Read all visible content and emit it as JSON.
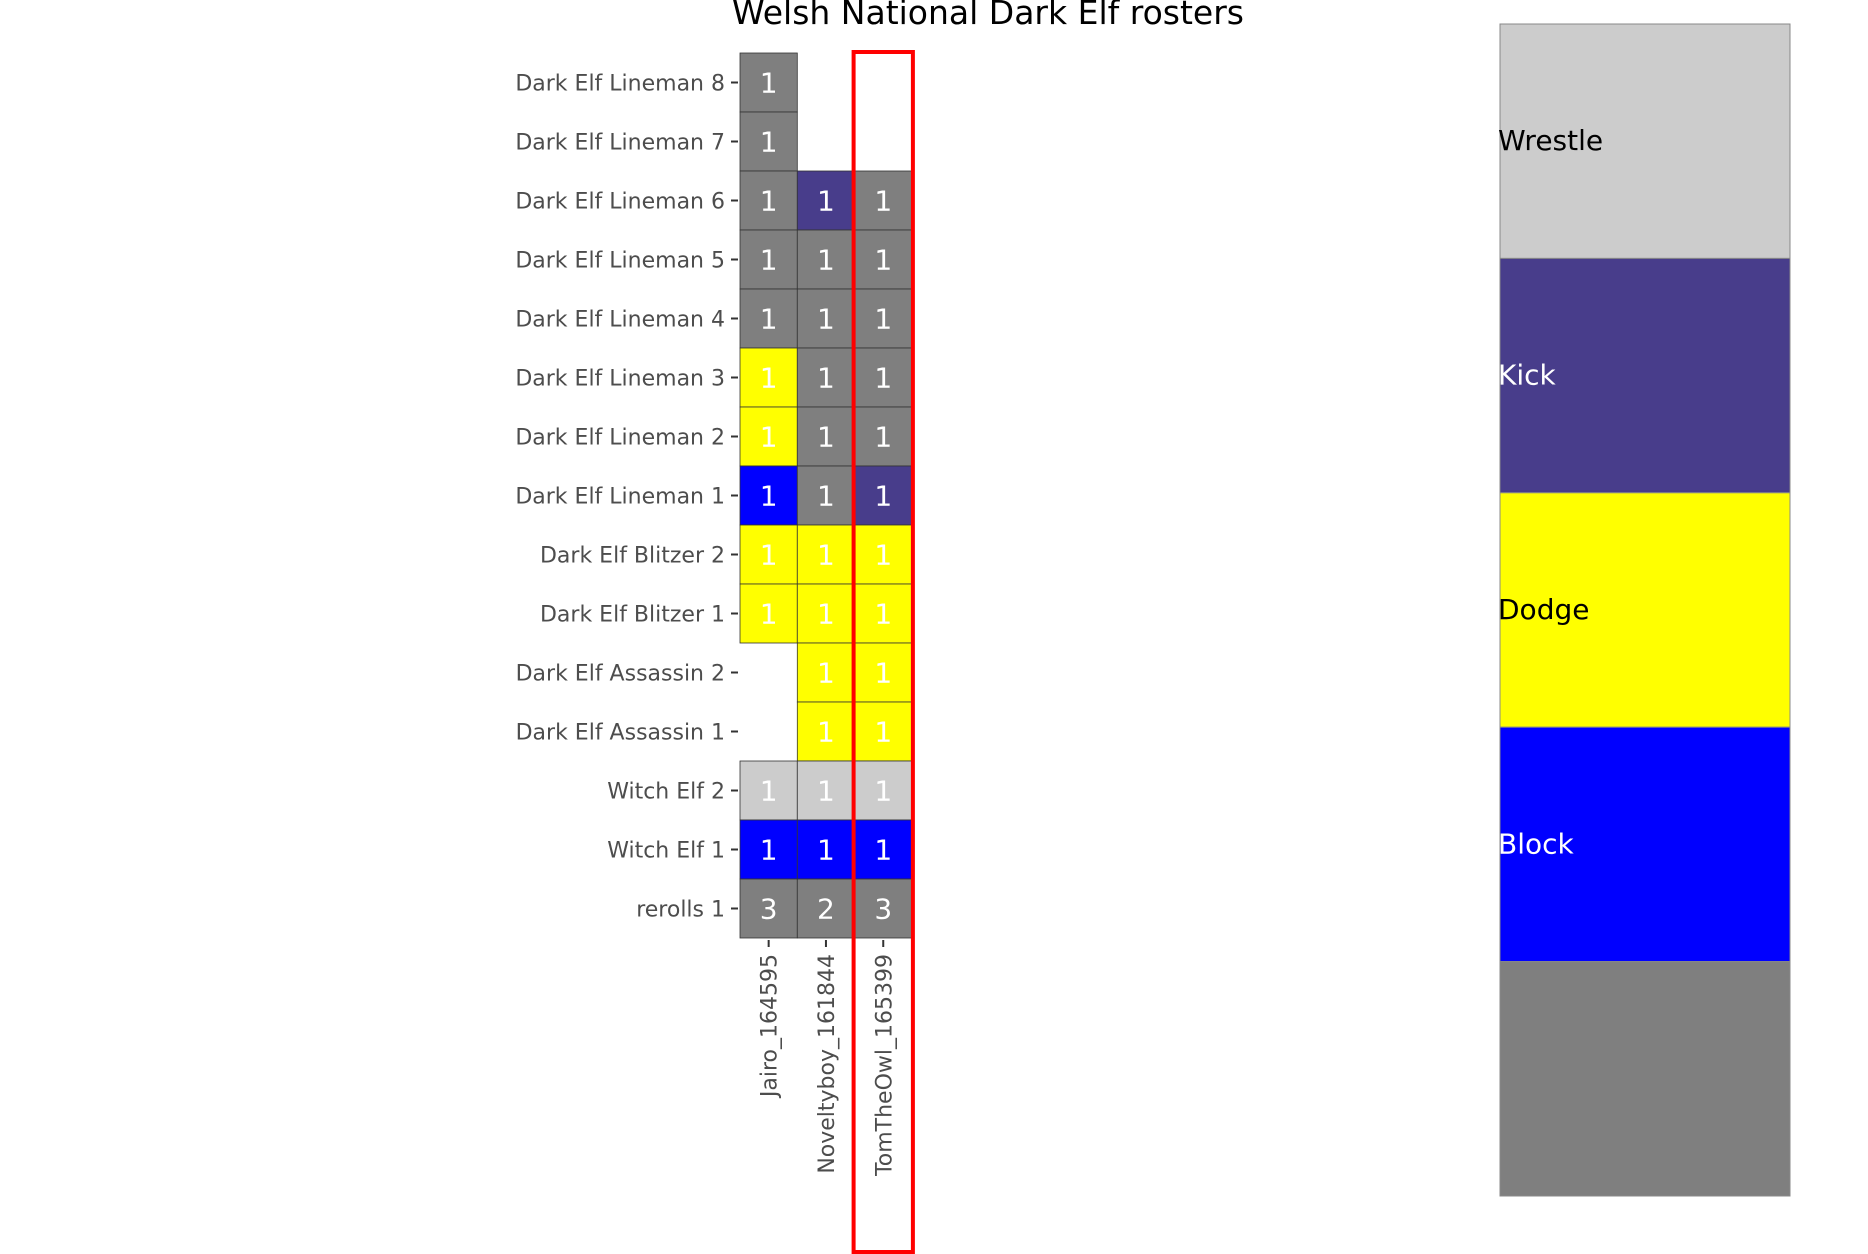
{
  "chart_data": {
    "type": "heatmap",
    "title": "Welsh National Dark Elf rosters",
    "xlabel": "",
    "ylabel": "",
    "columns": [
      "Jairo_164595",
      "Noveltyboy_161844",
      "TomTheOwl_165399"
    ],
    "highlighted_column": "TomTheOwl_165399",
    "rows": [
      "Dark Elf Lineman 8",
      "Dark Elf Lineman 7",
      "Dark Elf Lineman 6",
      "Dark Elf Lineman 5",
      "Dark Elf Lineman 4",
      "Dark Elf Lineman 3",
      "Dark Elf Lineman 2",
      "Dark Elf Lineman 1",
      "Dark Elf Blitzer 2",
      "Dark Elf Blitzer 1",
      "Dark Elf Assassin 2",
      "Dark Elf Assassin 1",
      "Witch Elf 2",
      "Witch Elf 1",
      "rerolls 1"
    ],
    "values": [
      [
        1,
        null,
        null
      ],
      [
        1,
        null,
        null
      ],
      [
        1,
        1,
        1
      ],
      [
        1,
        1,
        1
      ],
      [
        1,
        1,
        1
      ],
      [
        1,
        1,
        1
      ],
      [
        1,
        1,
        1
      ],
      [
        1,
        1,
        1
      ],
      [
        1,
        1,
        1
      ],
      [
        1,
        1,
        1
      ],
      [
        null,
        1,
        1
      ],
      [
        null,
        1,
        1
      ],
      [
        1,
        1,
        1
      ],
      [
        1,
        1,
        1
      ],
      [
        3,
        2,
        3
      ]
    ],
    "skills": [
      [
        "None",
        null,
        null
      ],
      [
        "None",
        null,
        null
      ],
      [
        "None",
        "Kick",
        "None"
      ],
      [
        "None",
        "None",
        "None"
      ],
      [
        "None",
        "None",
        "None"
      ],
      [
        "Dodge",
        "None",
        "None"
      ],
      [
        "Dodge",
        "None",
        "None"
      ],
      [
        "Block",
        "None",
        "Kick"
      ],
      [
        "Dodge",
        "Dodge",
        "Dodge"
      ],
      [
        "Dodge",
        "Dodge",
        "Dodge"
      ],
      [
        null,
        "Dodge",
        "Dodge"
      ],
      [
        null,
        "Dodge",
        "Dodge"
      ],
      [
        "Wrestle",
        "Wrestle",
        "Wrestle"
      ],
      [
        "Block",
        "Block",
        "Block"
      ],
      [
        "None",
        "None",
        "None"
      ]
    ],
    "legend": [
      {
        "label": "Wrestle",
        "key": "Wrestle",
        "color": "#cccccc"
      },
      {
        "label": "Kick",
        "key": "Kick",
        "color": "#483d8b"
      },
      {
        "label": "Dodge",
        "key": "Dodge",
        "color": "#ffff00"
      },
      {
        "label": "Block",
        "key": "Block",
        "color": "#0000ff"
      },
      {
        "label": "",
        "key": "None",
        "color": "#7f7f7f"
      }
    ],
    "legend_placement": "right"
  }
}
